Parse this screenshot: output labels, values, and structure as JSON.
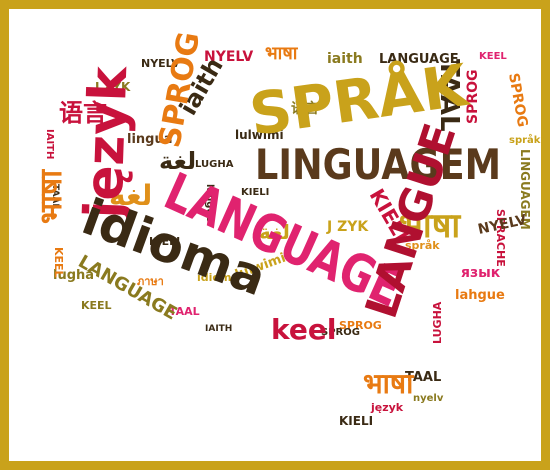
{
  "colors": {
    "frame": "#c9a21b",
    "red": "#c8123c",
    "pink": "#e0236f",
    "crimson": "#b01030",
    "mustard": "#c9a21b",
    "olive": "#8a7a1f",
    "orange": "#e87a12",
    "amber": "#e0901a",
    "brown": "#5a3a1c",
    "dark": "#3a2a14"
  },
  "words": {
    "sprak": "SPRÅK",
    "linguagem": "LINGUAGEM",
    "language_big": "LANGUAGE",
    "idioma": "idioma",
    "jezyk": "język",
    "langue_big": "LANGUE",
    "keel_big": "keel",
    "lingua": "lingua",
    "taal_big": "TAAL",
    "nyelv": "NYELV",
    "iaith": "iaith",
    "sprog": "SPROG",
    "language_top": "LANGUAGE",
    "keel_top": "KEEL",
    "lughat": "ภาษา",
    "zyk": "J ZYK",
    "language_left": "LANGUAGE",
    "lugha": "lugha",
    "kieli": "KIELI",
    "sprache": "SPRACHE",
    "lulwimi": "lulwimi",
    "lahgue": "lahgue",
    "yazyk": "язык",
    "linguagem_side": "LINGUAGEM",
    "iaith_small": "IAITH",
    "taal_small": "TAAL",
    "kieli_bottom": "KIELI",
    "jezyk_bottom": "język",
    "nyelv_bottom": "nyelv",
    "sprog_small": "SPROG",
    "idioma_small": "idioma",
    "lugha_small": "LUGHA",
    "keel_left": "KEEL",
    "langue_small": "langue",
    "sprak_small": "språk",
    "nyelv_mid": "NYELV",
    "hi_big": "भाषा",
    "ar_big": "لغة",
    "zh_big": "语言"
  }
}
